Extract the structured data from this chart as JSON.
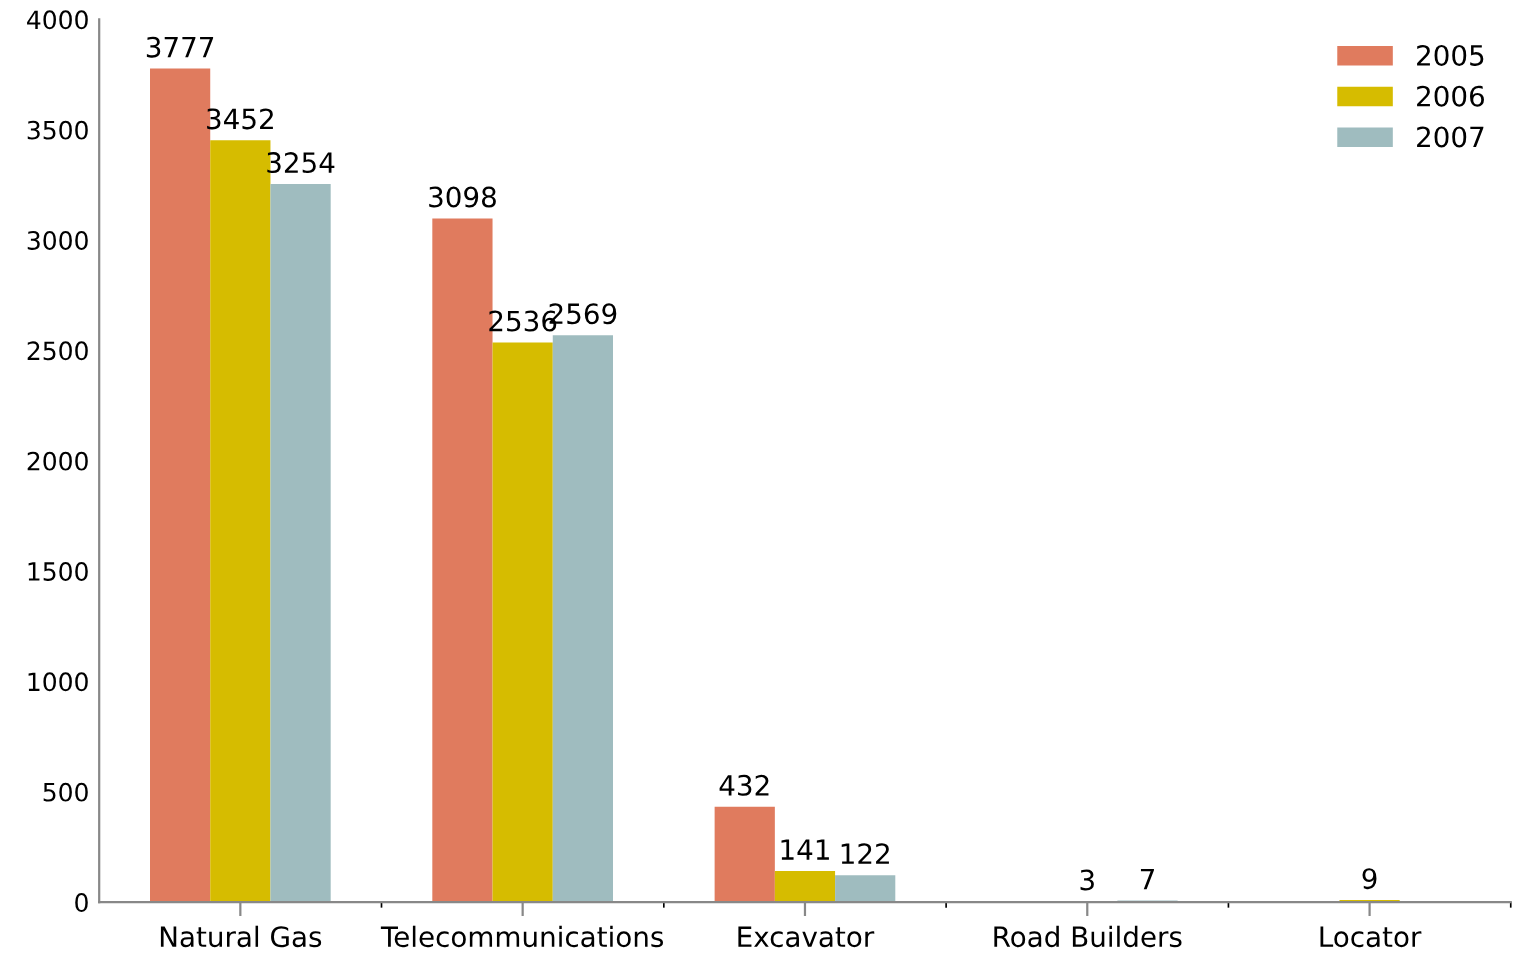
{
  "chart_data": {
    "type": "bar",
    "categories": [
      "Natural Gas",
      "Telecommunications",
      "Excavator",
      "Road Builders",
      "Locator"
    ],
    "series": [
      {
        "name": "2005",
        "color": "#e07b5e",
        "values": [
          3777,
          3098,
          432,
          null,
          null
        ]
      },
      {
        "name": "2006",
        "color": "#d6bc00",
        "values": [
          3452,
          2536,
          141,
          3,
          9
        ]
      },
      {
        "name": "2007",
        "color": "#9fbcbf",
        "values": [
          3254,
          2569,
          122,
          7,
          null
        ]
      }
    ],
    "ylim": [
      0,
      4000
    ],
    "yticks": [
      0,
      500,
      1000,
      1500,
      2000,
      2500,
      3000,
      3500,
      4000
    ],
    "grid": false,
    "legend": "top right",
    "data_labels": true
  }
}
